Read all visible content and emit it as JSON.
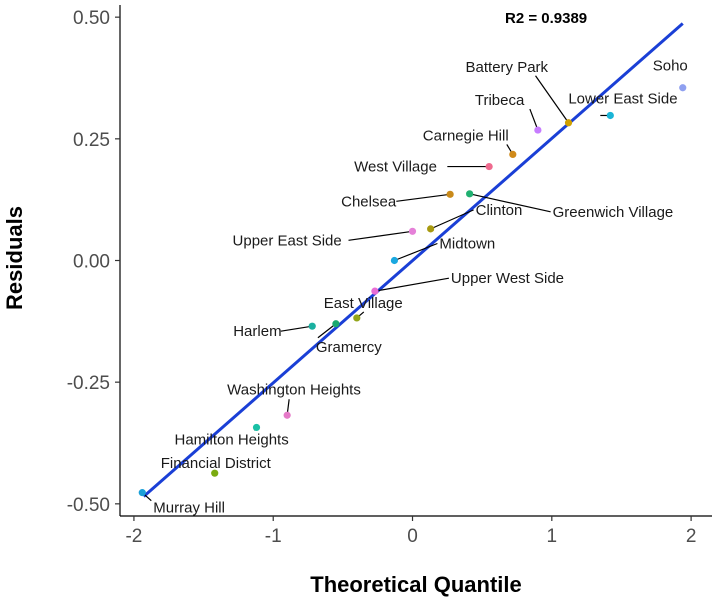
{
  "chart_data": {
    "type": "scatter",
    "title": "",
    "xlabel": "Theoretical Quantile",
    "ylabel": "Residuals",
    "xlim": [
      -2.1,
      2.15
    ],
    "ylim": [
      -0.525,
      0.525
    ],
    "x_ticks": [
      -2,
      -1,
      0,
      1,
      2
    ],
    "y_ticks": [
      -0.5,
      -0.25,
      0.0,
      0.25,
      0.5
    ],
    "x_tick_labels": [
      "-2",
      "-1",
      "0",
      "1",
      "2"
    ],
    "y_tick_labels": [
      "-0.50",
      "-0.25",
      "0.00",
      "0.25",
      "0.50"
    ],
    "grid": false,
    "annotation": "R2 = 0.9389",
    "fit_line": {
      "x": [
        -1.93,
        1.94
      ],
      "y": [
        -0.485,
        0.487
      ],
      "color": "#1a3fd6"
    },
    "points": [
      {
        "label": "Soho",
        "x": 1.94,
        "y": 0.355,
        "color": "#8fa0f0"
      },
      {
        "label": "Lower East Side",
        "x": 1.42,
        "y": 0.298,
        "color": "#1ab4d6"
      },
      {
        "label": "Battery Park",
        "x": 1.12,
        "y": 0.283,
        "color": "#d0a000"
      },
      {
        "label": "Tribeca",
        "x": 0.9,
        "y": 0.268,
        "color": "#c77cff"
      },
      {
        "label": "Carnegie Hill",
        "x": 0.72,
        "y": 0.218,
        "color": "#d08a1a"
      },
      {
        "label": "West Village",
        "x": 0.55,
        "y": 0.193,
        "color": "#ef6a8e"
      },
      {
        "label": "Chelsea",
        "x": 0.27,
        "y": 0.136,
        "color": "#c98a1a"
      },
      {
        "label": "Greenwich Village",
        "x": 0.41,
        "y": 0.137,
        "color": "#20b070"
      },
      {
        "label": "Clinton",
        "x": 0.13,
        "y": 0.065,
        "color": "#a89a10"
      },
      {
        "label": "Upper East Side",
        "x": 0.0,
        "y": 0.06,
        "color": "#e580d8"
      },
      {
        "label": "Midtown",
        "x": -0.13,
        "y": 0.0,
        "color": "#1aa8e0"
      },
      {
        "label": "Upper West Side",
        "x": -0.27,
        "y": -0.063,
        "color": "#e86ed6"
      },
      {
        "label": "East Village",
        "x": -0.4,
        "y": -0.118,
        "color": "#93a51a"
      },
      {
        "label": "Gramercy",
        "x": -0.55,
        "y": -0.13,
        "color": "#1aa970"
      },
      {
        "label": "Harlem",
        "x": -0.72,
        "y": -0.135,
        "color": "#1ab0a0"
      },
      {
        "label": "Washington Heights",
        "x": -0.9,
        "y": -0.318,
        "color": "#e57ac8"
      },
      {
        "label": "Hamilton Heights",
        "x": -1.12,
        "y": -0.343,
        "color": "#1ac0a5"
      },
      {
        "label": "Financial District",
        "x": -1.42,
        "y": -0.437,
        "color": "#7aab10"
      },
      {
        "label": "Murray Hill",
        "x": -1.94,
        "y": -0.477,
        "color": "#1aa0d8"
      }
    ]
  }
}
